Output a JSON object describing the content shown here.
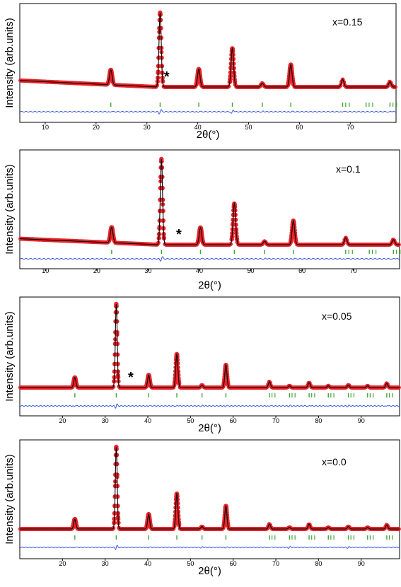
{
  "chart_data": [
    {
      "type": "line",
      "composition_label": "x=0.15",
      "xlabel": "2θ(°)",
      "ylabel": "Intensity (arb.units)",
      "xlim": [
        5,
        79
      ],
      "ylim": [
        0,
        1
      ],
      "xticks": [
        10,
        20,
        30,
        40,
        50,
        60,
        70
      ],
      "tick_labels": [
        "10",
        "20",
        "30",
        "40",
        "50",
        "60",
        "70"
      ],
      "impurity_marker": {
        "label": "*",
        "x": 33.9
      },
      "peaks": [
        {
          "x": 22.9,
          "y": 0.2
        },
        {
          "x": 32.6,
          "y": 1.0
        },
        {
          "x": 40.2,
          "y": 0.24
        },
        {
          "x": 46.8,
          "y": 0.52
        },
        {
          "x": 52.7,
          "y": 0.05
        },
        {
          "x": 58.3,
          "y": 0.3
        },
        {
          "x": 68.5,
          "y": 0.1
        },
        {
          "x": 77.8,
          "y": 0.07
        }
      ],
      "bragg_positions": [
        22.9,
        32.6,
        40.2,
        46.8,
        52.7,
        58.3,
        68.5,
        73.1,
        77.8
      ],
      "series": [
        {
          "name": "Yobs",
          "color": "#e8232a"
        },
        {
          "name": "Ycalc",
          "color": "#000000"
        },
        {
          "name": "Yobs-Ycalc",
          "color": "#3a5fe0"
        },
        {
          "name": "Bragg position",
          "color": "#3fa535"
        }
      ]
    },
    {
      "type": "line",
      "composition_label": "x=0.1",
      "xlabel": "2θ(°)",
      "ylabel": "Intensity (arb.units)",
      "xlim": [
        5,
        79
      ],
      "ylim": [
        0,
        1
      ],
      "xticks": [
        10,
        20,
        30,
        40,
        50,
        60,
        70
      ],
      "tick_labels": [
        "10",
        "20",
        "30",
        "40",
        "50",
        "60",
        "70"
      ],
      "impurity_marker": {
        "label": "*",
        "x": 36.0
      },
      "peaks": [
        {
          "x": 22.9,
          "y": 0.18
        },
        {
          "x": 32.6,
          "y": 1.0
        },
        {
          "x": 40.2,
          "y": 0.2
        },
        {
          "x": 46.8,
          "y": 0.48
        },
        {
          "x": 52.7,
          "y": 0.04
        },
        {
          "x": 58.3,
          "y": 0.28
        },
        {
          "x": 68.5,
          "y": 0.08
        },
        {
          "x": 77.8,
          "y": 0.06
        }
      ],
      "bragg_positions": [
        22.9,
        32.6,
        40.2,
        46.8,
        52.7,
        58.3,
        68.5,
        73.1,
        77.8
      ],
      "series": [
        {
          "name": "Yobs",
          "color": "#e8232a"
        },
        {
          "name": "Ycalc",
          "color": "#000000"
        },
        {
          "name": "Yobs-Ycalc",
          "color": "#3a5fe0"
        },
        {
          "name": "Bragg position",
          "color": "#3fa535"
        }
      ]
    },
    {
      "type": "line",
      "composition_label": "x=0.05",
      "xlabel": "2θ(°)",
      "ylabel": "Intensity (arb.units)",
      "xlim": [
        10,
        99
      ],
      "ylim": [
        0,
        1
      ],
      "xticks": [
        20,
        30,
        40,
        50,
        60,
        70,
        80,
        90
      ],
      "tick_labels": [
        "20",
        "30",
        "40",
        "50",
        "60",
        "70",
        "80",
        "90"
      ],
      "impurity_marker": {
        "label": "*",
        "x": 36.0
      },
      "peaks": [
        {
          "x": 22.9,
          "y": 0.12
        },
        {
          "x": 32.6,
          "y": 1.0
        },
        {
          "x": 40.2,
          "y": 0.15
        },
        {
          "x": 46.8,
          "y": 0.4
        },
        {
          "x": 52.7,
          "y": 0.03
        },
        {
          "x": 58.3,
          "y": 0.27
        },
        {
          "x": 68.5,
          "y": 0.07
        },
        {
          "x": 73.2,
          "y": 0.02
        },
        {
          "x": 77.8,
          "y": 0.06
        },
        {
          "x": 82.3,
          "y": 0.02
        },
        {
          "x": 87.0,
          "y": 0.03
        },
        {
          "x": 91.5,
          "y": 0.02
        },
        {
          "x": 96.0,
          "y": 0.05
        }
      ],
      "bragg_positions": [
        22.9,
        32.6,
        40.2,
        46.8,
        52.7,
        58.3,
        68.5,
        73.2,
        77.8,
        82.3,
        87.0,
        91.5,
        96.0
      ],
      "series": [
        {
          "name": "Yobs",
          "color": "#e8232a"
        },
        {
          "name": "Ycalc",
          "color": "#000000"
        },
        {
          "name": "Yobs-Ycalc",
          "color": "#3a5fe0"
        },
        {
          "name": "Bragg position",
          "color": "#3fa535"
        }
      ]
    },
    {
      "type": "line",
      "composition_label": "x=0.0",
      "xlabel": "2θ(°)",
      "ylabel": "Intensity (arb.units)",
      "xlim": [
        10,
        99
      ],
      "ylim": [
        0,
        1
      ],
      "xticks": [
        20,
        30,
        40,
        50,
        60,
        70,
        80,
        90
      ],
      "tick_labels": [
        "20",
        "30",
        "40",
        "50",
        "60",
        "70",
        "80",
        "90"
      ],
      "peaks": [
        {
          "x": 22.9,
          "y": 0.12
        },
        {
          "x": 32.6,
          "y": 1.0
        },
        {
          "x": 40.2,
          "y": 0.18
        },
        {
          "x": 46.8,
          "y": 0.43
        },
        {
          "x": 52.7,
          "y": 0.03
        },
        {
          "x": 58.3,
          "y": 0.28
        },
        {
          "x": 68.5,
          "y": 0.06
        },
        {
          "x": 73.2,
          "y": 0.02
        },
        {
          "x": 77.8,
          "y": 0.06
        },
        {
          "x": 82.3,
          "y": 0.02
        },
        {
          "x": 87.0,
          "y": 0.03
        },
        {
          "x": 91.5,
          "y": 0.02
        },
        {
          "x": 96.0,
          "y": 0.05
        }
      ],
      "bragg_positions": [
        22.9,
        32.6,
        40.2,
        46.8,
        52.7,
        58.3,
        68.5,
        73.2,
        77.8,
        82.3,
        87.0,
        91.5,
        96.0
      ],
      "series": [
        {
          "name": "Yobs",
          "color": "#e8232a"
        },
        {
          "name": "Ycalc",
          "color": "#000000"
        },
        {
          "name": "Yobs-Ycalc",
          "color": "#3a5fe0"
        },
        {
          "name": "Bragg position",
          "color": "#3fa535"
        }
      ]
    }
  ]
}
